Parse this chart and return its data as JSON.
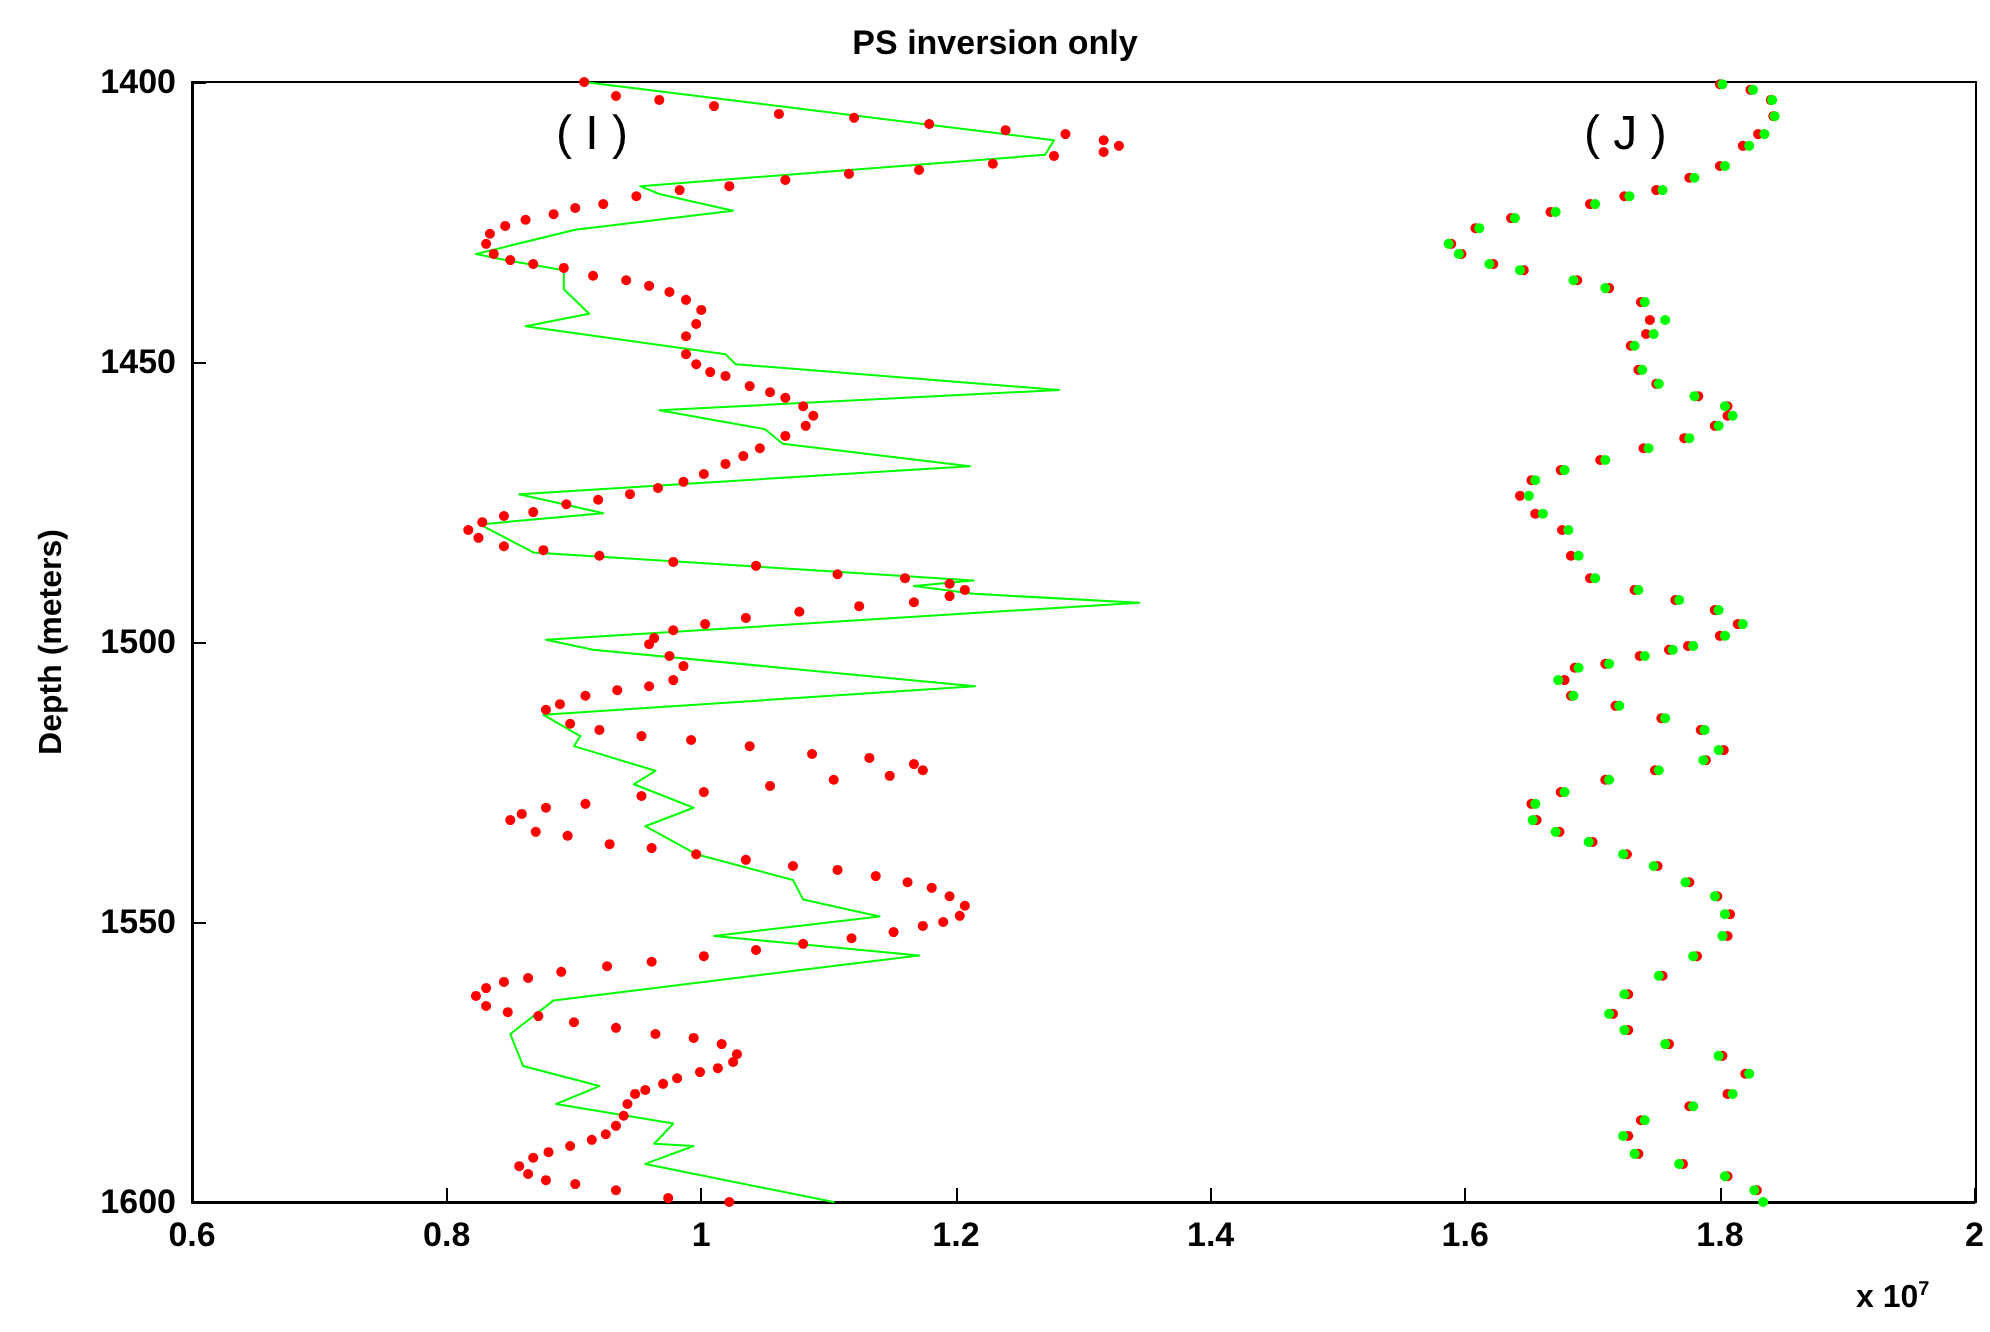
{
  "chart_data": {
    "type": "scatter",
    "title": "PS inversion only",
    "ylabel": "Depth (meters)",
    "annotations": [
      "( I )",
      "( J )",
      "x 10$^{7}$"
    ],
    "xlim": [
      0.6,
      2
    ],
    "xticks": [
      0.6,
      0.8,
      1,
      1.2,
      1.4,
      1.6,
      1.8,
      2
    ],
    "ylim": [
      1600,
      1400
    ],
    "yticks": [
      1400,
      1450,
      1500,
      1550,
      1600
    ],
    "grid": false,
    "legend": false,
    "marker": "circle",
    "series": [
      {
        "type": "line",
        "marker": "none",
        "line_style": "solid",
        "color": "#00ff00",
        "x": [
          0.908,
          1.277,
          1.27,
          0.952,
          0.967,
          1.025,
          0.901,
          0.823,
          0.846,
          0.892,
          0.892,
          0.912,
          0.862,
          1.019,
          1.027,
          1.281,
          0.967,
          1.05,
          1.064,
          1.211,
          0.857,
          0.923,
          0.826,
          0.868,
          1.214,
          1.167,
          1.214,
          1.344,
          0.878,
          0.915,
          1.215,
          0.876,
          0.905,
          0.9,
          0.964,
          0.947,
          0.994,
          0.956,
          0.996,
          1.072,
          1.08,
          1.14,
          1.01,
          1.171,
          0.884,
          0.85,
          0.86,
          0.92,
          0.886,
          0.978,
          0.963,
          0.994,
          0.956,
          1.104
        ],
        "values": [
          1400,
          1410.4,
          1413,
          1418.6,
          1420,
          1423,
          1426.4,
          1430.7,
          1431.8,
          1433.6,
          1437,
          1441.4,
          1443.6,
          1448.6,
          1450.4,
          1455,
          1458.6,
          1462,
          1464.6,
          1468.6,
          1473.6,
          1477,
          1479,
          1484,
          1489,
          1490,
          1491.4,
          1493,
          1499.6,
          1501.4,
          1507.9,
          1513,
          1516.8,
          1518.6,
          1523,
          1525.4,
          1529.6,
          1532.9,
          1537.9,
          1542.5,
          1546,
          1549,
          1552.5,
          1556,
          1564,
          1570,
          1575.7,
          1579.3,
          1582.5,
          1586,
          1589.6,
          1590,
          1593.2,
          1600
        ]
      },
      {
        "type": "scatter",
        "color": "#ff0000",
        "x": [
          0.908,
          0.933,
          0.967,
          1.01,
          1.061,
          1.12,
          1.179,
          1.239,
          1.286,
          1.316,
          1.328,
          1.316,
          1.277,
          1.229,
          1.171,
          1.116,
          1.066,
          1.022,
          0.983,
          0.949,
          0.923,
          0.901,
          0.884,
          0.862,
          0.846,
          0.834,
          0.831,
          0.837,
          0.85,
          0.868,
          0.892,
          0.915,
          0.941,
          0.959,
          0.975,
          0.988,
          1,
          0.996,
          0.988,
          0.988,
          0.996,
          1.007,
          1.019,
          1.038,
          1.054,
          1.066,
          1.08,
          1.088,
          1.082,
          1.066,
          1.046,
          1.033,
          1.019,
          1.002,
          0.986,
          0.966,
          0.944,
          0.919,
          0.894,
          0.868,
          0.845,
          0.828,
          0.817,
          0.825,
          0.845,
          0.876,
          0.92,
          0.978,
          1.043,
          1.107,
          1.16,
          1.195,
          1.207,
          1.195,
          1.167,
          1.124,
          1.077,
          1.035,
          1.003,
          0.978,
          0.963,
          0.959,
          0.975,
          0.986,
          0.978,
          0.959,
          0.934,
          0.909,
          0.889,
          0.878,
          0.897,
          0.92,
          0.953,
          0.992,
          1.038,
          1.087,
          1.132,
          1.167,
          1.174,
          1.148,
          1.104,
          1.054,
          1.002,
          0.953,
          0.909,
          0.878,
          0.859,
          0.85,
          0.87,
          0.895,
          0.928,
          0.961,
          0.996,
          1.035,
          1.072,
          1.107,
          1.137,
          1.162,
          1.181,
          1.195,
          1.207,
          1.203,
          1.19,
          1.174,
          1.151,
          1.118,
          1.08,
          1.043,
          1.002,
          0.961,
          0.926,
          0.89,
          0.864,
          0.845,
          0.831,
          0.823,
          0.831,
          0.848,
          0.872,
          0.9,
          0.933,
          0.964,
          0.994,
          1.016,
          1.028,
          1.025,
          1.013,
          0.999,
          0.981,
          0.97,
          0.956,
          0.948,
          0.942,
          0.939,
          0.933,
          0.925,
          0.914,
          0.897,
          0.88,
          0.868,
          0.857,
          0.864,
          0.878,
          0.901,
          0.933,
          0.974,
          1.022
        ],
        "values": [
          1400,
          1402.5,
          1403.2,
          1404.3,
          1405.7,
          1406.4,
          1407.5,
          1408.6,
          1409.3,
          1410.4,
          1411.4,
          1412.5,
          1413.2,
          1414.6,
          1415.7,
          1416.4,
          1417.5,
          1418.6,
          1419.3,
          1420.4,
          1421.8,
          1422.5,
          1423.6,
          1424.6,
          1425.7,
          1427.1,
          1428.9,
          1430.7,
          1431.8,
          1432.5,
          1433.2,
          1434.6,
          1435.4,
          1436.4,
          1437.5,
          1438.9,
          1440.7,
          1443.2,
          1445.4,
          1448.6,
          1450.4,
          1451.8,
          1452.5,
          1454.3,
          1455.4,
          1456.4,
          1457.9,
          1459.6,
          1461.4,
          1463.2,
          1465.4,
          1466.8,
          1468.2,
          1470,
          1471.4,
          1472.5,
          1473.6,
          1474.6,
          1475.4,
          1476.8,
          1477.5,
          1478.6,
          1480,
          1481.4,
          1482.9,
          1483.6,
          1484.6,
          1485.7,
          1486.4,
          1487.9,
          1488.6,
          1489.6,
          1490.7,
          1491.8,
          1492.9,
          1493.6,
          1494.6,
          1495.7,
          1496.8,
          1497.9,
          1499.3,
          1500.4,
          1502.5,
          1504.3,
          1506.8,
          1507.9,
          1508.6,
          1509.6,
          1511.1,
          1512.1,
          1514.6,
          1515.7,
          1516.8,
          1517.5,
          1518.6,
          1520,
          1520.7,
          1521.8,
          1522.9,
          1523.9,
          1524.6,
          1525.7,
          1526.8,
          1527.5,
          1528.9,
          1529.6,
          1530.7,
          1531.8,
          1533.9,
          1534.6,
          1536.1,
          1536.8,
          1537.9,
          1538.9,
          1540,
          1540.7,
          1541.8,
          1542.9,
          1543.9,
          1545.4,
          1547.1,
          1548.9,
          1550,
          1550.7,
          1551.8,
          1552.9,
          1553.9,
          1555,
          1556.1,
          1557.1,
          1557.9,
          1558.9,
          1560,
          1560.7,
          1561.8,
          1563.2,
          1565,
          1566.1,
          1566.8,
          1567.9,
          1568.9,
          1570,
          1570.7,
          1571.8,
          1573.6,
          1575,
          1576.1,
          1576.8,
          1577.9,
          1578.9,
          1580,
          1580.7,
          1582.5,
          1584.6,
          1586.4,
          1587.9,
          1588.9,
          1590,
          1591.1,
          1592.1,
          1593.6,
          1595,
          1596.1,
          1596.8,
          1597.9,
          1599.3,
          1600
        ]
      },
      {
        "type": "scatter",
        "color": "#ff0000",
        "x": [
          1.8,
          1.824,
          1.84,
          1.842,
          1.83,
          1.818,
          1.8,
          1.776,
          1.75,
          1.725,
          1.698,
          1.667,
          1.636,
          1.608,
          1.589,
          1.597,
          1.622,
          1.646,
          1.688,
          1.713,
          1.738,
          1.745,
          1.742,
          1.73,
          1.736,
          1.75,
          1.783,
          1.806,
          1.806,
          1.796,
          1.772,
          1.74,
          1.706,
          1.675,
          1.652,
          1.643,
          1.655,
          1.676,
          1.683,
          1.698,
          1.733,
          1.765,
          1.796,
          1.814,
          1.8,
          1.775,
          1.76,
          1.737,
          1.71,
          1.686,
          1.678,
          1.683,
          1.718,
          1.754,
          1.785,
          1.803,
          1.789,
          1.749,
          1.71,
          1.675,
          1.652,
          1.656,
          1.674,
          1.7,
          1.727,
          1.751,
          1.776,
          1.798,
          1.808,
          1.806,
          1.782,
          1.755,
          1.728,
          1.716,
          1.728,
          1.76,
          1.802,
          1.82,
          1.806,
          1.776,
          1.738,
          1.728,
          1.736,
          1.771,
          1.806,
          1.829
        ],
        "values": [
          1400.4,
          1401.4,
          1403.2,
          1406.1,
          1409.3,
          1411.4,
          1415,
          1417.1,
          1419.3,
          1420.4,
          1421.8,
          1423.2,
          1424.3,
          1426.1,
          1428.9,
          1430.7,
          1432.5,
          1433.6,
          1435.4,
          1436.8,
          1439.3,
          1442.5,
          1445,
          1447.1,
          1451.4,
          1453.9,
          1456.1,
          1457.9,
          1459.6,
          1461.4,
          1463.6,
          1465.4,
          1467.5,
          1469.3,
          1471.1,
          1473.9,
          1477.1,
          1480,
          1484.6,
          1488.6,
          1490.7,
          1492.5,
          1494.3,
          1496.8,
          1498.9,
          1500.7,
          1501.4,
          1502.5,
          1503.9,
          1504.6,
          1506.8,
          1509.6,
          1511.4,
          1513.6,
          1515.7,
          1519.3,
          1521.1,
          1522.9,
          1524.6,
          1526.8,
          1528.9,
          1531.8,
          1533.9,
          1535.7,
          1537.9,
          1540,
          1542.9,
          1545.4,
          1548.6,
          1552.5,
          1556.1,
          1559.6,
          1562.9,
          1566.4,
          1569.3,
          1571.8,
          1573.9,
          1577.1,
          1580.7,
          1582.9,
          1585.4,
          1588.2,
          1591.4,
          1593.2,
          1595.4,
          1597.9
        ]
      },
      {
        "type": "scatter",
        "color": "#00ff00",
        "x": [
          1.802,
          1.826,
          1.841,
          1.843,
          1.835,
          1.823,
          1.804,
          1.78,
          1.755,
          1.729,
          1.702,
          1.671,
          1.639,
          1.611,
          1.587,
          1.595,
          1.619,
          1.643,
          1.685,
          1.71,
          1.741,
          1.757,
          1.748,
          1.733,
          1.739,
          1.752,
          1.78,
          1.804,
          1.81,
          1.799,
          1.776,
          1.744,
          1.71,
          1.678,
          1.655,
          1.65,
          1.661,
          1.681,
          1.689,
          1.702,
          1.736,
          1.768,
          1.799,
          1.818,
          1.804,
          1.779,
          1.763,
          1.741,
          1.713,
          1.689,
          1.673,
          1.685,
          1.721,
          1.757,
          1.788,
          1.799,
          1.787,
          1.752,
          1.713,
          1.678,
          1.655,
          1.653,
          1.671,
          1.697,
          1.724,
          1.748,
          1.773,
          1.796,
          1.804,
          1.802,
          1.779,
          1.752,
          1.725,
          1.713,
          1.725,
          1.757,
          1.799,
          1.823,
          1.81,
          1.779,
          1.741,
          1.724,
          1.733,
          1.768,
          1.804,
          1.827,
          1.834
        ],
        "values": [
          1400.4,
          1401.4,
          1403.2,
          1406.1,
          1409.3,
          1411.4,
          1415,
          1417.1,
          1419.3,
          1420.4,
          1421.8,
          1423.2,
          1424.3,
          1426.1,
          1428.9,
          1430.7,
          1432.5,
          1433.6,
          1435.4,
          1436.8,
          1439.3,
          1442.5,
          1445,
          1447.1,
          1451.4,
          1453.9,
          1456.1,
          1457.9,
          1459.6,
          1461.4,
          1463.6,
          1465.4,
          1467.5,
          1469.3,
          1471.1,
          1473.9,
          1477.1,
          1480,
          1484.6,
          1488.6,
          1490.7,
          1492.5,
          1494.3,
          1496.8,
          1498.9,
          1500.7,
          1501.4,
          1502.5,
          1503.9,
          1504.6,
          1506.8,
          1509.6,
          1511.4,
          1513.6,
          1515.7,
          1519.3,
          1521.1,
          1522.9,
          1524.6,
          1526.8,
          1528.9,
          1531.8,
          1533.9,
          1535.7,
          1537.9,
          1540,
          1542.9,
          1545.4,
          1548.6,
          1552.5,
          1556.1,
          1559.6,
          1562.9,
          1566.4,
          1569.3,
          1571.8,
          1573.9,
          1577.1,
          1580.7,
          1582.9,
          1585.4,
          1588.2,
          1591.4,
          1593.2,
          1595.4,
          1597.9,
          1600
        ]
      }
    ]
  }
}
